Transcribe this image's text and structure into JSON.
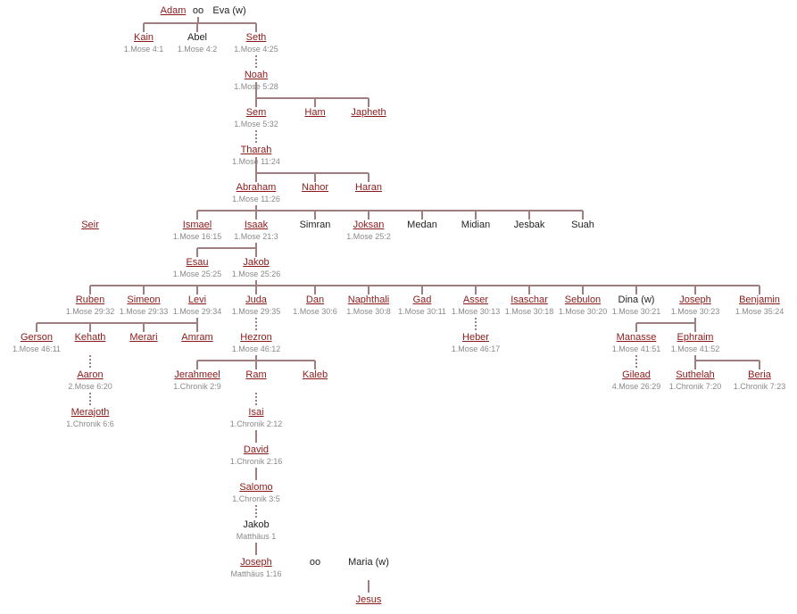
{
  "marriage_symbol": "oo",
  "people": {
    "adam": {
      "name": "Adam",
      "linked": true
    },
    "eva": {
      "name": "Eva (w)",
      "linked": false
    },
    "kain": {
      "name": "Kain",
      "linked": true,
      "ref": "1.Mose 4:1"
    },
    "abel": {
      "name": "Abel",
      "linked": false,
      "ref": "1.Mose 4:2"
    },
    "seth": {
      "name": "Seth",
      "linked": true,
      "ref": "1.Mose 4:25"
    },
    "noah": {
      "name": "Noah",
      "linked": true,
      "ref": "1.Mose 5:28"
    },
    "sem": {
      "name": "Sem",
      "linked": true,
      "ref": "1.Mose 5:32"
    },
    "ham": {
      "name": "Ham",
      "linked": true
    },
    "japheth": {
      "name": "Japheth",
      "linked": true
    },
    "tharah": {
      "name": "Tharah",
      "linked": true,
      "ref": "1.Mose 11:24"
    },
    "abraham": {
      "name": "Abraham",
      "linked": true,
      "ref": "1.Mose 11:26"
    },
    "nahor": {
      "name": "Nahor",
      "linked": true
    },
    "haran": {
      "name": "Haran",
      "linked": true
    },
    "seir": {
      "name": "Seir",
      "linked": true
    },
    "ismael": {
      "name": "Ismael",
      "linked": true,
      "ref": "1.Mose 16:15"
    },
    "isaak": {
      "name": "Isaak",
      "linked": true,
      "ref": "1.Mose 21:3"
    },
    "simran": {
      "name": "Simran",
      "linked": false
    },
    "joksan": {
      "name": "Joksan",
      "linked": true,
      "ref": "1.Mose 25:2"
    },
    "medan": {
      "name": "Medan",
      "linked": false
    },
    "midian": {
      "name": "Midian",
      "linked": false
    },
    "jesbak": {
      "name": "Jesbak",
      "linked": false
    },
    "suah": {
      "name": "Suah",
      "linked": false
    },
    "esau": {
      "name": "Esau",
      "linked": true,
      "ref": "1.Mose 25:25"
    },
    "jakob": {
      "name": "Jakob",
      "linked": true,
      "ref": "1.Mose 25:26"
    },
    "ruben": {
      "name": "Ruben",
      "linked": true,
      "ref": "1.Mose 29:32"
    },
    "simeon": {
      "name": "Simeon",
      "linked": true,
      "ref": "1.Mose 29:33"
    },
    "levi": {
      "name": "Levi",
      "linked": true,
      "ref": "1.Mose 29:34"
    },
    "juda": {
      "name": "Juda",
      "linked": true,
      "ref": "1.Mose 29:35"
    },
    "dan": {
      "name": "Dan",
      "linked": true,
      "ref": "1.Mose 30:6"
    },
    "naphthali": {
      "name": "Naphthali",
      "linked": true,
      "ref": "1.Mose 30:8"
    },
    "gad": {
      "name": "Gad",
      "linked": true,
      "ref": "1.Mose 30:11"
    },
    "asser": {
      "name": "Asser",
      "linked": true,
      "ref": "1.Mose 30:13"
    },
    "isaschar": {
      "name": "Isaschar",
      "linked": true,
      "ref": "1.Mose 30:18"
    },
    "sebulon": {
      "name": "Sebulon",
      "linked": true,
      "ref": "1.Mose 30:20"
    },
    "dina": {
      "name": "Dina (w)",
      "linked": false,
      "ref": "1.Mose 30:21"
    },
    "joseph": {
      "name": "Joseph",
      "linked": true,
      "ref": "1.Mose 30:23"
    },
    "benjamin": {
      "name": "Benjamin",
      "linked": true,
      "ref": "1.Mose 35:24"
    },
    "gerson": {
      "name": "Gerson",
      "linked": true,
      "ref": "1.Mose 46:11"
    },
    "kehath": {
      "name": "Kehath",
      "linked": true
    },
    "merari": {
      "name": "Merari",
      "linked": true
    },
    "amram": {
      "name": "Amram",
      "linked": true
    },
    "hezron": {
      "name": "Hezron",
      "linked": true,
      "ref": "1.Mose 46:12"
    },
    "heber": {
      "name": "Heber",
      "linked": true,
      "ref": "1.Mose 46:17"
    },
    "manasse": {
      "name": "Manasse",
      "linked": true,
      "ref": "1.Mose 41:51"
    },
    "ephraim": {
      "name": "Ephraim",
      "linked": true,
      "ref": "1.Mose 41:52"
    },
    "aaron": {
      "name": "Aaron",
      "linked": true,
      "ref": "2.Mose 6:20"
    },
    "jerahmeel": {
      "name": "Jerahmeel",
      "linked": true,
      "ref": "1.Chronik 2:9"
    },
    "ram": {
      "name": "Ram",
      "linked": true
    },
    "kaleb": {
      "name": "Kaleb",
      "linked": true
    },
    "gilead": {
      "name": "Gilead",
      "linked": true,
      "ref": "4.Mose 26:29"
    },
    "suthelah": {
      "name": "Suthelah",
      "linked": true,
      "ref": "1.Chronik 7:20"
    },
    "beria": {
      "name": "Beria",
      "linked": true,
      "ref": "1.Chronik 7:23"
    },
    "merajoth": {
      "name": "Merajoth",
      "linked": true,
      "ref": "1.Chronik 6:6"
    },
    "isai": {
      "name": "Isai",
      "linked": true,
      "ref": "1.Chronik 2:12"
    },
    "david": {
      "name": "David",
      "linked": true,
      "ref": "1.Chronik 2:16"
    },
    "salomo": {
      "name": "Salomo",
      "linked": true,
      "ref": "1.Chronik 3:5"
    },
    "jakob2": {
      "name": "Jakob",
      "linked": false,
      "ref": "Matthäus 1"
    },
    "joseph2": {
      "name": "Joseph",
      "linked": true,
      "ref": "Matthäus 1:16"
    },
    "maria": {
      "name": "Maria (w)",
      "linked": false
    },
    "jesus": {
      "name": "Jesus",
      "linked": true
    }
  },
  "colors": {
    "link": "#8b1a1a",
    "line": "#9e7f7f",
    "text": "#222222",
    "ref": "#8a8a8a"
  }
}
